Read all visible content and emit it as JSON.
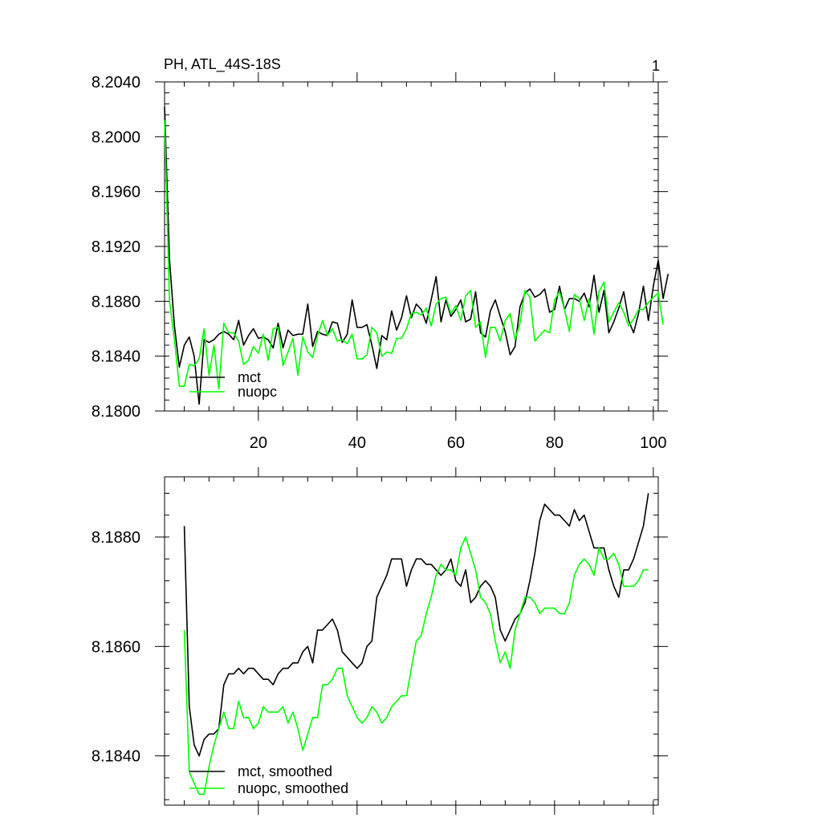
{
  "chart_data": [
    {
      "type": "line",
      "title": "PH, ATL_44S-18S",
      "corner_label": "1",
      "xlim": [
        1,
        101
      ],
      "ylim": [
        8.18,
        8.204
      ],
      "x_ticks": [
        20,
        40,
        60,
        80,
        100
      ],
      "y_ticks": [
        8.18,
        8.184,
        8.188,
        8.192,
        8.196,
        8.2,
        8.204
      ],
      "y_tick_labels": [
        "8.1800",
        "8.1840",
        "8.1880",
        "8.1920",
        "8.1960",
        "8.2000",
        "8.2040"
      ],
      "legend_position": "bottom-left",
      "series": [
        {
          "name": "mct",
          "color": "#000000",
          "x_start": 1,
          "values": [
            8.2022,
            8.191,
            8.1862,
            8.1832,
            8.1848,
            8.1854,
            8.184,
            8.1805,
            8.1852,
            8.185,
            8.1852,
            8.1856,
            8.1858,
            8.1856,
            8.1852,
            8.1866,
            8.1848,
            8.1855,
            8.186,
            8.1853,
            8.1854,
            8.1852,
            8.1846,
            8.1864,
            8.1846,
            8.1859,
            8.1855,
            8.1856,
            8.1856,
            8.1878,
            8.1847,
            8.1858,
            8.1856,
            8.1855,
            8.1865,
            8.1864,
            8.185,
            8.1856,
            8.1881,
            8.1861,
            8.1861,
            8.1863,
            8.1848,
            8.1831,
            8.1855,
            8.1852,
            8.1873,
            8.1859,
            8.1868,
            8.1884,
            8.1868,
            8.1878,
            8.1874,
            8.1864,
            8.1881,
            8.1898,
            8.1865,
            8.1881,
            8.1869,
            8.1874,
            8.1881,
            8.1865,
            8.1867,
            8.1887,
            8.1857,
            8.1854,
            8.1873,
            8.1881,
            8.1869,
            8.1858,
            8.1841,
            8.1847,
            8.1876,
            8.1886,
            8.1889,
            8.1883,
            8.1885,
            8.1889,
            8.1872,
            8.1874,
            8.1891,
            8.1874,
            8.1882,
            8.1882,
            8.188,
            8.1886,
            8.1876,
            8.1899,
            8.1872,
            8.1888,
            8.1857,
            8.1865,
            8.1875,
            8.1887,
            8.1866,
            8.1857,
            8.1871,
            8.1891,
            8.1866,
            8.1891,
            8.191,
            8.1882,
            8.19
          ]
        },
        {
          "name": "nuopc",
          "color": "#00ff00",
          "x_start": 1,
          "values": [
            8.2012,
            8.188,
            8.1852,
            8.1818,
            8.1818,
            8.1834,
            8.1833,
            8.1838,
            8.186,
            8.1826,
            8.1848,
            8.1816,
            8.1864,
            8.1857,
            8.1857,
            8.1851,
            8.1834,
            8.1837,
            8.1847,
            8.1842,
            8.1856,
            8.1837,
            8.186,
            8.1861,
            8.1833,
            8.1843,
            8.1853,
            8.1826,
            8.1854,
            8.1843,
            8.1839,
            8.1855,
            8.1866,
            8.1855,
            8.186,
            8.1851,
            8.1852,
            8.1849,
            8.1856,
            8.1838,
            8.1838,
            8.1841,
            8.1861,
            8.1857,
            8.184,
            8.1843,
            8.1842,
            8.1853,
            8.1853,
            8.186,
            8.1871,
            8.1872,
            8.187,
            8.1875,
            8.1862,
            8.1878,
            8.1882,
            8.1883,
            8.1871,
            8.1877,
            8.1866,
            8.1884,
            8.1888,
            8.1861,
            8.1865,
            8.1839,
            8.1861,
            8.1861,
            8.1851,
            8.1866,
            8.1871,
            8.1852,
            8.1864,
            8.1888,
            8.1883,
            8.1851,
            8.1855,
            8.1859,
            8.1857,
            8.1881,
            8.1887,
            8.1874,
            8.1858,
            8.1885,
            8.1882,
            8.1866,
            8.1882,
            8.1856,
            8.1887,
            8.1894,
            8.1865,
            8.1872,
            8.1879,
            8.1872,
            8.1862,
            8.1867,
            8.1874,
            8.1874,
            8.1879,
            8.1883,
            8.1886,
            8.1863
          ]
        }
      ]
    },
    {
      "type": "line",
      "title": "",
      "xlim": [
        1,
        101
      ],
      "ylim": [
        8.1831,
        8.1891
      ],
      "x_ticks": [
        20,
        40,
        60,
        80,
        100
      ],
      "y_ticks": [
        8.184,
        8.186,
        8.188
      ],
      "y_tick_labels": [
        "8.1840",
        "8.1860",
        "8.1880"
      ],
      "legend_position": "bottom-left",
      "series": [
        {
          "name": "mct, smoothed",
          "color": "#000000",
          "x_start": 5,
          "values": [
            8.1882,
            8.1849,
            8.1842,
            8.184,
            8.1843,
            8.1844,
            8.1844,
            8.1845,
            8.1853,
            8.1855,
            8.1855,
            8.1856,
            8.1855,
            8.1856,
            8.1856,
            8.1855,
            8.1854,
            8.1854,
            8.1853,
            8.1855,
            8.1856,
            8.1856,
            8.1857,
            8.1857,
            8.1859,
            8.186,
            8.1857,
            8.1863,
            8.1863,
            8.1864,
            8.1865,
            8.1863,
            8.1859,
            8.1858,
            8.1857,
            8.1856,
            8.1857,
            8.186,
            8.1861,
            8.1869,
            8.1871,
            8.1873,
            8.1876,
            8.1876,
            8.1876,
            8.1871,
            8.1874,
            8.1876,
            8.1876,
            8.1875,
            8.1875,
            8.1874,
            8.1873,
            8.1874,
            8.1876,
            8.1872,
            8.1871,
            8.1874,
            8.1868,
            8.1869,
            8.1871,
            8.1872,
            8.1871,
            8.1869,
            8.1863,
            8.1861,
            8.1863,
            8.1865,
            8.1866,
            8.1868,
            8.1872,
            8.1877,
            8.1883,
            8.1886,
            8.1885,
            8.1884,
            8.1884,
            8.1883,
            8.1882,
            8.1885,
            8.1883,
            8.1884,
            8.1881,
            8.1878,
            8.1878,
            8.1878,
            8.1874,
            8.1871,
            8.1869,
            8.1874,
            8.1874,
            8.1876,
            8.1879,
            8.1882,
            8.1888
          ]
        },
        {
          "name": "nuopc, smoothed",
          "color": "#00ff00",
          "x_start": 5,
          "values": [
            8.1863,
            8.1837,
            8.1835,
            8.1833,
            8.1833,
            8.1838,
            8.1842,
            8.1845,
            8.1848,
            8.1845,
            8.1845,
            8.185,
            8.1847,
            8.1847,
            8.1845,
            8.1846,
            8.1849,
            8.1848,
            8.1848,
            8.1848,
            8.1849,
            8.1846,
            8.1848,
            8.1845,
            8.1841,
            8.1844,
            8.1847,
            8.1847,
            8.1853,
            8.1853,
            8.1854,
            8.1856,
            8.1856,
            8.1851,
            8.1849,
            8.1847,
            8.1846,
            8.1847,
            8.1849,
            8.1848,
            8.1846,
            8.1847,
            8.1849,
            8.185,
            8.1851,
            8.1851,
            8.1856,
            8.1861,
            8.1862,
            8.1866,
            8.1869,
            8.1873,
            8.1875,
            8.1874,
            8.1874,
            8.1873,
            8.1878,
            8.188,
            8.1877,
            8.1874,
            8.1869,
            8.1868,
            8.1866,
            8.1861,
            8.1857,
            8.1859,
            8.1856,
            8.1863,
            8.1866,
            8.1869,
            8.1869,
            8.1868,
            8.1866,
            8.1867,
            8.1867,
            8.1867,
            8.1866,
            8.1866,
            8.1868,
            8.1873,
            8.1875,
            8.1876,
            8.1875,
            8.1873,
            8.1878,
            8.1876,
            8.1876,
            8.1877,
            8.1875,
            8.1871,
            8.1871,
            8.1871,
            8.1872,
            8.1874,
            8.1874
          ]
        }
      ]
    }
  ]
}
